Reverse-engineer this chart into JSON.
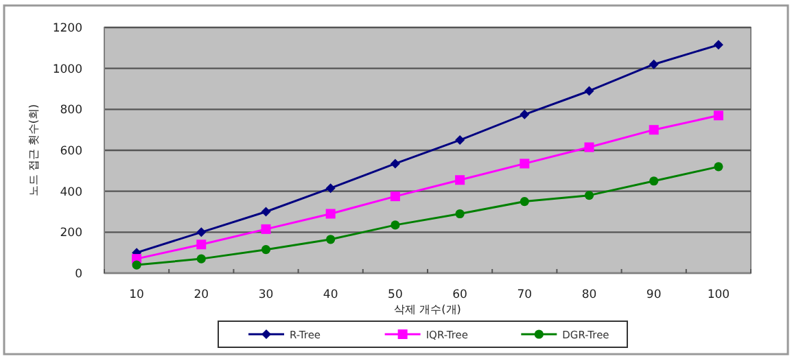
{
  "chart_data": {
    "type": "line",
    "xlabel": "삭제 개수(개)",
    "ylabel": "노드 접근 횟수(회)",
    "categories": [
      "10",
      "20",
      "30",
      "40",
      "50",
      "60",
      "70",
      "80",
      "90",
      "100"
    ],
    "series": [
      {
        "name": "R-Tree",
        "color": "#000080",
        "marker": "diamond",
        "values": [
          100,
          200,
          300,
          415,
          535,
          650,
          775,
          890,
          1020,
          1115
        ]
      },
      {
        "name": "IQR-Tree",
        "color": "#ff00ff",
        "marker": "square",
        "values": [
          70,
          140,
          215,
          290,
          375,
          455,
          535,
          615,
          700,
          770
        ]
      },
      {
        "name": "DGR-Tree",
        "color": "#008000",
        "marker": "circle",
        "values": [
          40,
          70,
          115,
          165,
          235,
          290,
          350,
          380,
          450,
          520
        ]
      }
    ],
    "ylim": [
      0,
      1200
    ],
    "yticks": [
      0,
      200,
      400,
      600,
      800,
      1000,
      1200
    ],
    "grid": "y",
    "legend": "bottom",
    "line_style": "solid"
  }
}
